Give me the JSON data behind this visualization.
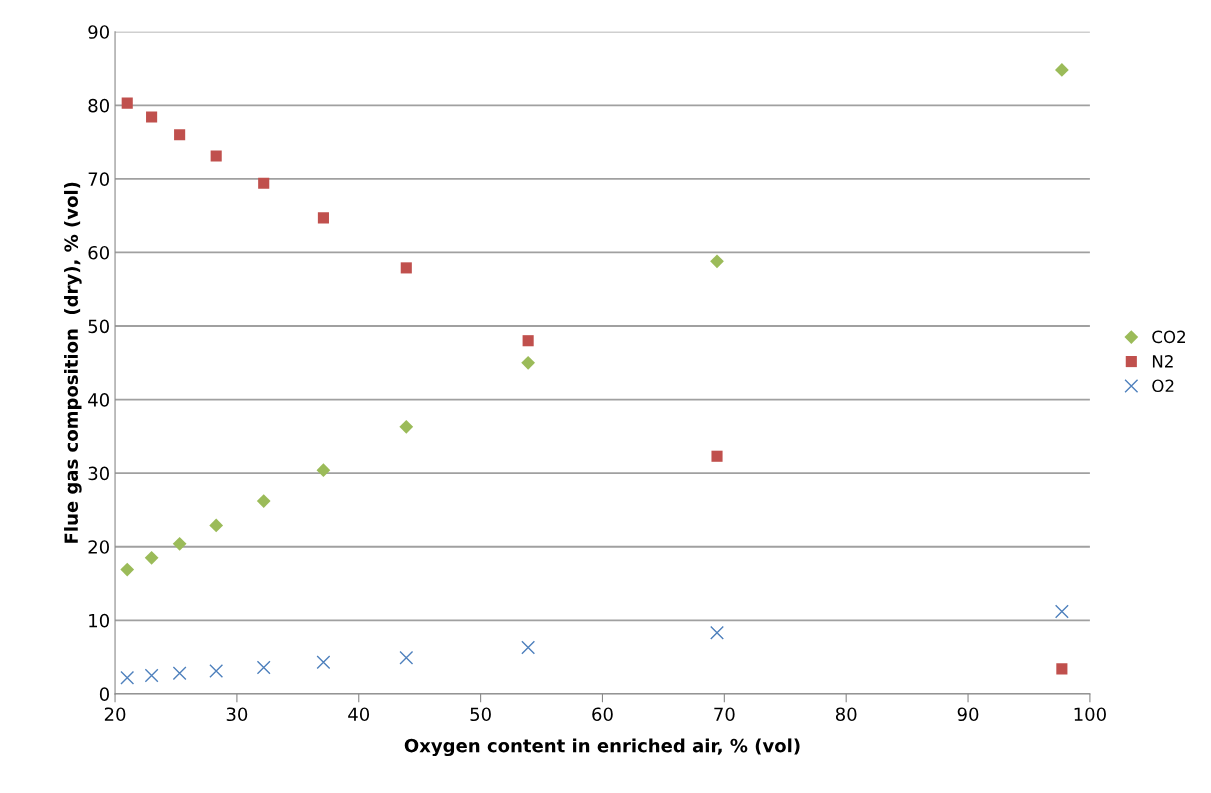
{
  "chart_data": {
    "type": "scatter",
    "xlabel": "Oxygen content in enriched air, % (vol)",
    "ylabel": "Flue gas composition  (dry), % (vol)",
    "x": [
      21,
      23,
      25.3,
      28.3,
      32.2,
      37.1,
      43.9,
      53.9,
      69.4,
      97.7
    ],
    "series": [
      {
        "name": "CO2",
        "color": "#9bbb59",
        "marker": "diamond",
        "values": [
          16.9,
          18.5,
          20.4,
          22.9,
          26.2,
          30.4,
          36.3,
          45.0,
          58.8,
          84.8
        ]
      },
      {
        "name": "N2",
        "color": "#c0504d",
        "marker": "square",
        "values": [
          80.3,
          78.4,
          76.0,
          73.1,
          69.4,
          64.7,
          57.9,
          48.0,
          32.3,
          3.4
        ]
      },
      {
        "name": "O2",
        "color": "#4f81bd",
        "marker": "cross",
        "values": [
          2.2,
          2.5,
          2.8,
          3.1,
          3.6,
          4.3,
          4.9,
          6.3,
          8.3,
          11.2
        ]
      }
    ],
    "xlim": [
      20,
      100
    ],
    "xticks": [
      20,
      30,
      40,
      50,
      60,
      70,
      80,
      90,
      100
    ],
    "ylim": [
      0,
      90
    ],
    "yticks": [
      0,
      10,
      20,
      30,
      40,
      50,
      60,
      70,
      80,
      90
    ],
    "grid": "y",
    "legend": "right"
  }
}
